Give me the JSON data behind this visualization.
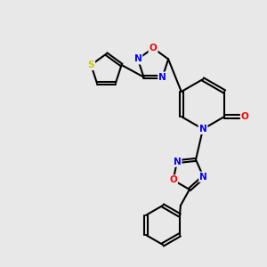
{
  "bg_color": "#e8e8e8",
  "bond_color": "#000000",
  "atom_colors": {
    "N": "#0000ff",
    "O": "#ff0000",
    "S": "#cccc00"
  },
  "figsize": [
    3.0,
    3.0
  ],
  "dpi": 100
}
